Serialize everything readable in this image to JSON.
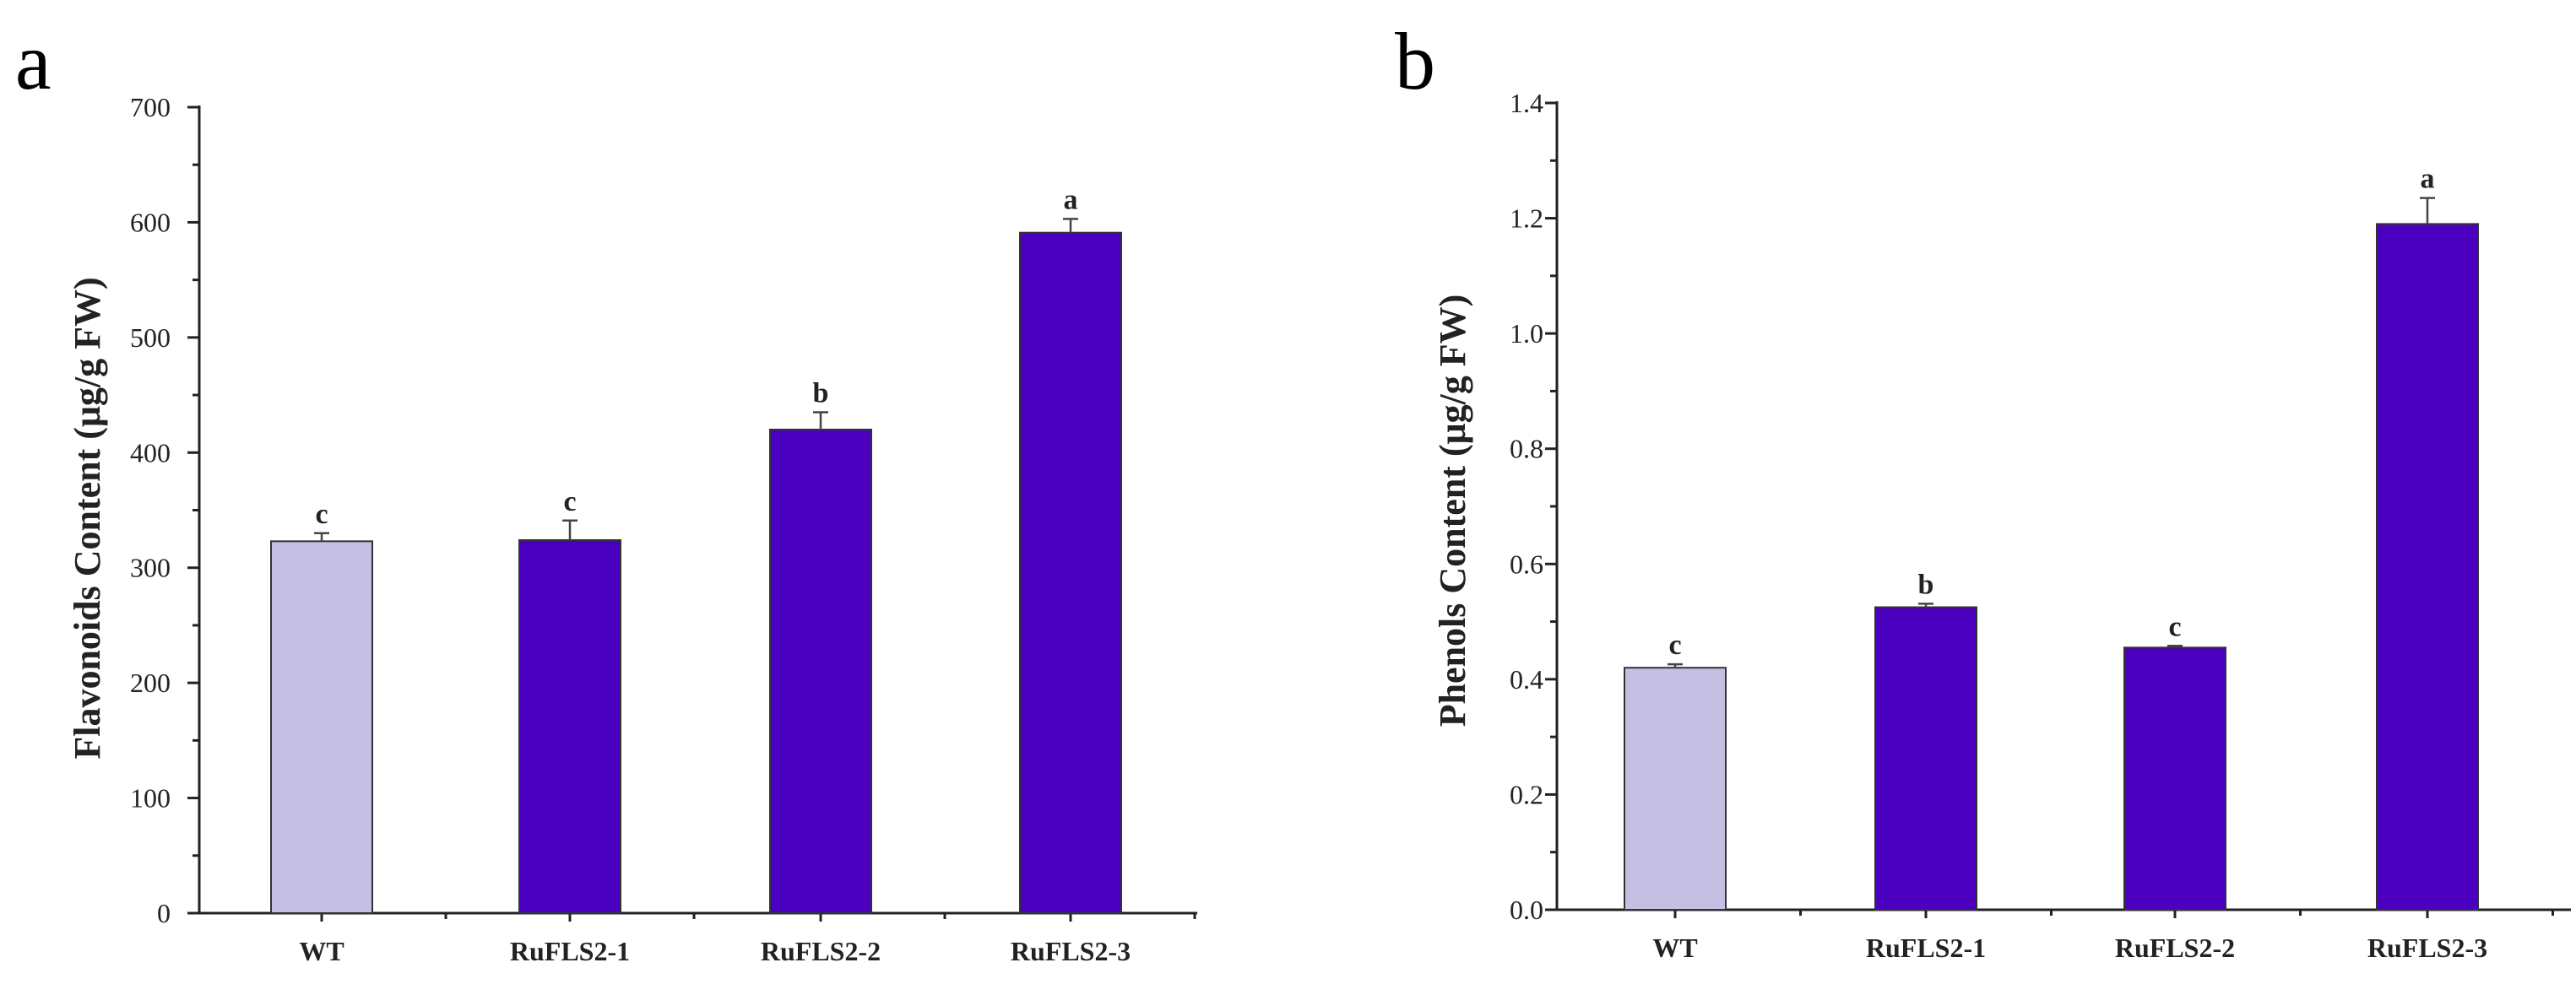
{
  "chart_data": [
    {
      "panel": "a",
      "type": "bar",
      "ylabel": "Flavonoids Content (μg/g FW)",
      "xlabel": "",
      "categories": [
        "WT",
        "RuFLS2-1",
        "RuFLS2-2",
        "RuFLS2-3"
      ],
      "values": [
        323,
        324,
        420,
        591
      ],
      "errors": [
        7,
        17,
        15,
        12
      ],
      "significance": [
        "c",
        "c",
        "b",
        "a"
      ],
      "colors": [
        "#c4bfe3",
        "#4b00bf",
        "#4b00bf",
        "#4b00bf"
      ],
      "ylim": [
        0,
        700
      ],
      "yticks": [
        0,
        100,
        200,
        300,
        400,
        500,
        600,
        700
      ],
      "ytick_labels": [
        "0",
        "100",
        "200",
        "300",
        "400",
        "500",
        "600",
        "700"
      ]
    },
    {
      "panel": "b",
      "type": "bar",
      "ylabel": "Phenols Content (μg/g FW)",
      "xlabel": "",
      "categories": [
        "WT",
        "RuFLS2-1",
        "RuFLS2-2",
        "RuFLS2-3"
      ],
      "values": [
        0.42,
        0.525,
        0.455,
        1.19
      ],
      "errors": [
        0.006,
        0.006,
        0.003,
        0.045
      ],
      "significance": [
        "c",
        "b",
        "c",
        "a"
      ],
      "colors": [
        "#c4bfe3",
        "#4b00bf",
        "#4b00bf",
        "#4b00bf"
      ],
      "ylim": [
        0,
        1.4
      ],
      "yticks": [
        0,
        0.2,
        0.4,
        0.6,
        0.8,
        1.0,
        1.2,
        1.4
      ],
      "ytick_labels": [
        "0.0",
        "0.2",
        "0.4",
        "0.6",
        "0.8",
        "1.0",
        "1.2",
        "1.4"
      ]
    }
  ]
}
